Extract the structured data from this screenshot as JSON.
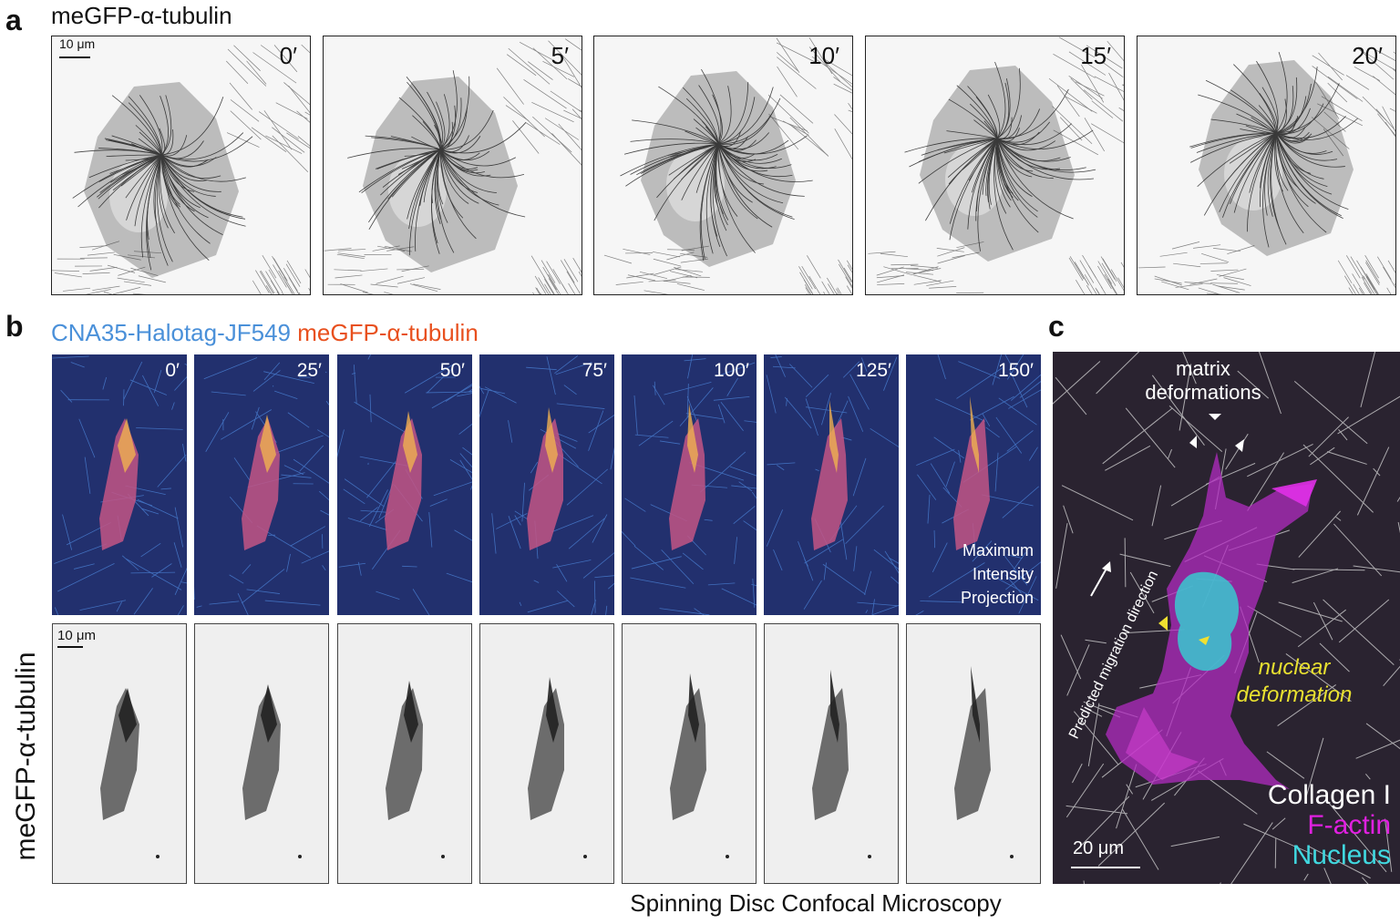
{
  "panels": {
    "a": {
      "letter": "a",
      "title": "meGFP-α-tubulin",
      "scale_label": "10 μm",
      "frames": [
        {
          "time": "0′"
        },
        {
          "time": "5′"
        },
        {
          "time": "10′"
        },
        {
          "time": "15′"
        },
        {
          "time": "20′"
        }
      ]
    },
    "b": {
      "letter": "b",
      "header_label_1": "CNA35-Halotag-JF549",
      "header_label_2": "meGFP-α-tubulin",
      "header_color_1": "#4a90d9",
      "header_color_2": "#e8501e",
      "side_label": "meGFP-α-tubulin",
      "scale_label": "10 μm",
      "mip_lines": [
        "Maximum",
        "Intensity",
        "Projection"
      ],
      "bottom_caption": "Spinning Disc Confocal Microscopy",
      "frames": [
        {
          "time": "0′"
        },
        {
          "time": "25′"
        },
        {
          "time": "50′"
        },
        {
          "time": "75′"
        },
        {
          "time": "100′"
        },
        {
          "time": "125′"
        },
        {
          "time": "150′"
        }
      ]
    },
    "c": {
      "letter": "c",
      "matrix_label_1": "matrix",
      "matrix_label_2": "deformations",
      "migration_label": "Predicted migration direction",
      "nuclear_label_1": "nuclear",
      "nuclear_label_2": "deformation",
      "legend": [
        {
          "text": "Collagen I",
          "color": "#ffffff"
        },
        {
          "text": "F-actin",
          "color": "#e020e0"
        },
        {
          "text": "Nucleus",
          "color": "#40d8e0"
        }
      ],
      "scale_label": "20 μm",
      "nuclear_color": "#e8e030"
    }
  }
}
